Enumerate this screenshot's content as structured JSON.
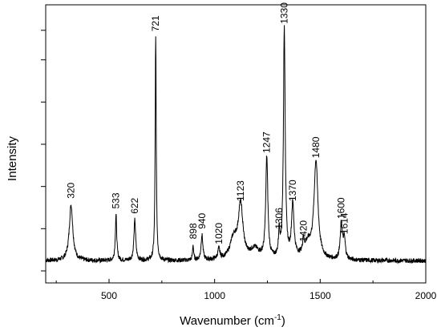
{
  "chart_data": {
    "type": "line",
    "title": "",
    "xlabel": "Wavenumber (cm",
    "xlabel_sup": "-1",
    "xlabel_close": ")",
    "ylabel": "Intensity",
    "xlim": [
      200,
      2000
    ],
    "ylim": [
      0,
      1
    ],
    "x_ticks": [
      500,
      1000,
      1500,
      2000
    ],
    "y_tick_labels_shown": false,
    "grid": false,
    "line_color": "#000000",
    "baseline": 0.04,
    "peaks": [
      {
        "x": 320,
        "height": 0.22,
        "width": 10,
        "label": "320"
      },
      {
        "x": 533,
        "height": 0.18,
        "width": 4,
        "label": "533"
      },
      {
        "x": 622,
        "height": 0.16,
        "width": 5,
        "label": "622"
      },
      {
        "x": 721,
        "height": 0.88,
        "width": 3,
        "label": "721"
      },
      {
        "x": 898,
        "height": 0.06,
        "width": 3,
        "label": "898"
      },
      {
        "x": 940,
        "height": 0.1,
        "width": 5,
        "label": "940"
      },
      {
        "x": 1020,
        "height": 0.04,
        "width": 6,
        "label": "1020"
      },
      {
        "x": 1123,
        "height": 0.21,
        "width": 13,
        "label": "1123"
      },
      {
        "x": 1247,
        "height": 0.4,
        "width": 6,
        "label": "1247"
      },
      {
        "x": 1306,
        "height": 0.1,
        "width": 4,
        "label": "1306"
      },
      {
        "x": 1330,
        "height": 0.91,
        "width": 5,
        "label": "1330"
      },
      {
        "x": 1370,
        "height": 0.21,
        "width": 7,
        "label": "1370"
      },
      {
        "x": 1420,
        "height": 0.05,
        "width": 3,
        "label": "1420"
      },
      {
        "x": 1480,
        "height": 0.38,
        "width": 11,
        "label": "1480"
      },
      {
        "x": 1600,
        "height": 0.14,
        "width": 6,
        "label": "1600"
      },
      {
        "x": 1614,
        "height": 0.08,
        "width": 6,
        "label": "1614"
      }
    ],
    "shoulders": [
      {
        "x": 1090,
        "height": 0.08,
        "width": 20
      },
      {
        "x": 1190,
        "height": 0.04,
        "width": 25
      },
      {
        "x": 1440,
        "height": 0.06,
        "width": 25
      }
    ]
  }
}
